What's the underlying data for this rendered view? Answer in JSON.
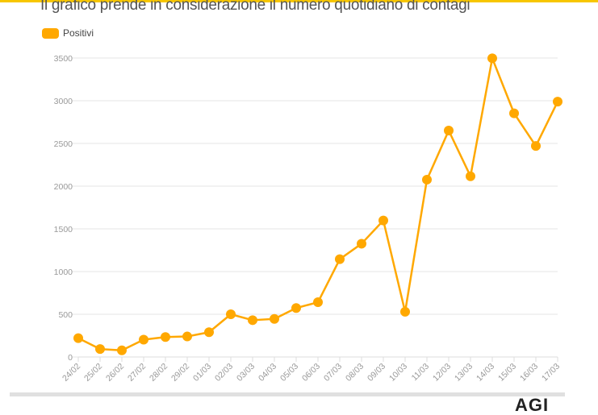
{
  "header": {
    "title": "Il grafico prende in considerazione il numero quotidiano di contagi"
  },
  "legend": {
    "items": [
      {
        "label": "Positivi",
        "color": "#ffa800"
      }
    ]
  },
  "footer": {
    "logo_text": "AGI",
    "accent_color": "#f7c600"
  },
  "chart_data": {
    "type": "line",
    "title": "Il grafico prende in considerazione il numero quotidiano di contagi",
    "xlabel": "",
    "ylabel": "",
    "ylim": [
      0,
      3500
    ],
    "yticks": [
      0,
      500,
      1000,
      1500,
      2000,
      2500,
      3000,
      3500
    ],
    "grid": true,
    "legend_position": "top-left",
    "categories": [
      "24/02",
      "25/02",
      "26/02",
      "27/02",
      "28/02",
      "29/02",
      "01/03",
      "02/03",
      "03/03",
      "04/03",
      "05/03",
      "06/03",
      "07/03",
      "08/03",
      "09/03",
      "10/03",
      "11/03",
      "12/03",
      "13/03",
      "14/03",
      "15/03",
      "16/03",
      "17/03"
    ],
    "series": [
      {
        "name": "Positivi",
        "color": "#ffa800",
        "values": [
          221,
          93,
          78,
          203,
          233,
          240,
          290,
          500,
          431,
          446,
          573,
          641,
          1145,
          1326,
          1598,
          529,
          2076,
          2651,
          2116,
          3497,
          2853,
          2470,
          2989
        ]
      }
    ]
  }
}
